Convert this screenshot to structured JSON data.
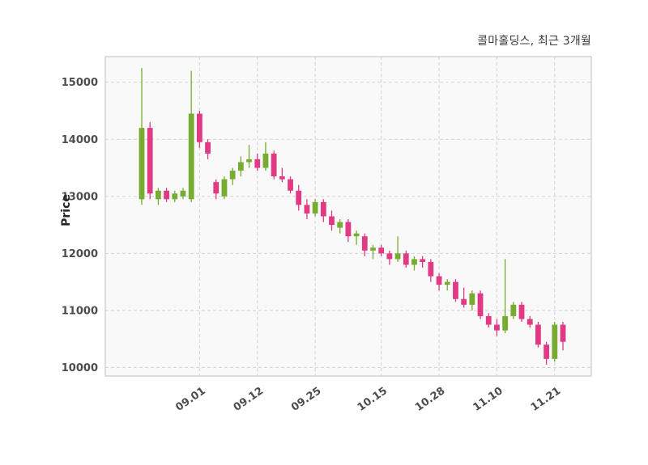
{
  "header": {
    "title": "콜마홀딩스, 최근 3개월"
  },
  "chart_data": {
    "type": "candlestick",
    "title": "콜마홀딩스, 최근 3개월",
    "ylabel": "Price",
    "ylim": [
      9850,
      15450
    ],
    "y_ticks": [
      10000,
      11000,
      12000,
      13000,
      14000,
      15000
    ],
    "x_tick_labels": [
      "09.01",
      "09.12",
      "09.25",
      "10.15",
      "10.28",
      "11.10",
      "11.21"
    ],
    "x_tick_indices": [
      7,
      14,
      21,
      29,
      36,
      43,
      50
    ],
    "grid": true,
    "legend": "none",
    "colors": {
      "up": "#77ab31",
      "down": "#e03a84",
      "grid": "#d4d4d4",
      "border": "#c9c9c9",
      "plot_bg": "#f9f9f9",
      "tick_text": "#4d4d4d"
    },
    "candles": [
      [
        12950,
        15250,
        12850,
        14200
      ],
      [
        14200,
        14300,
        12950,
        13050
      ],
      [
        12950,
        13150,
        12850,
        13100
      ],
      [
        13100,
        13150,
        12900,
        12950
      ],
      [
        12950,
        13100,
        12900,
        13050
      ],
      [
        13000,
        13150,
        12950,
        13100
      ],
      [
        12950,
        15200,
        12900,
        14450
      ],
      [
        14450,
        14500,
        13850,
        13950
      ],
      [
        13950,
        14000,
        13650,
        13750
      ],
      [
        13250,
        13300,
        12950,
        13050
      ],
      [
        13000,
        13350,
        12950,
        13300
      ],
      [
        13300,
        13500,
        13200,
        13450
      ],
      [
        13450,
        13700,
        13350,
        13600
      ],
      [
        13600,
        13900,
        13500,
        13650
      ],
      [
        13650,
        13750,
        13450,
        13500
      ],
      [
        13500,
        13950,
        13450,
        13750
      ],
      [
        13750,
        13800,
        13300,
        13350
      ],
      [
        13350,
        13500,
        13250,
        13300
      ],
      [
        13300,
        13350,
        13050,
        13100
      ],
      [
        13100,
        13200,
        12750,
        12850
      ],
      [
        12850,
        12950,
        12600,
        12700
      ],
      [
        12700,
        12950,
        12650,
        12900
      ],
      [
        12900,
        12950,
        12550,
        12650
      ],
      [
        12650,
        12750,
        12400,
        12500
      ],
      [
        12450,
        12600,
        12350,
        12550
      ],
      [
        12550,
        12600,
        12200,
        12300
      ],
      [
        12300,
        12400,
        12150,
        12350
      ],
      [
        12300,
        12350,
        11950,
        12050
      ],
      [
        12050,
        12150,
        11900,
        12100
      ],
      [
        12100,
        12150,
        11950,
        12000
      ],
      [
        12000,
        12050,
        11800,
        11900
      ],
      [
        11900,
        12300,
        11850,
        12000
      ],
      [
        12000,
        12050,
        11750,
        11800
      ],
      [
        11800,
        11950,
        11700,
        11900
      ],
      [
        11900,
        11950,
        11750,
        11850
      ],
      [
        11850,
        11900,
        11500,
        11600
      ],
      [
        11600,
        11650,
        11350,
        11450
      ],
      [
        11450,
        11550,
        11350,
        11500
      ],
      [
        11500,
        11550,
        11150,
        11200
      ],
      [
        11200,
        11400,
        11050,
        11100
      ],
      [
        11100,
        11350,
        11000,
        11300
      ],
      [
        11300,
        11350,
        10850,
        10900
      ],
      [
        10900,
        10950,
        10700,
        10750
      ],
      [
        10750,
        10850,
        10550,
        10650
      ],
      [
        10650,
        11900,
        10600,
        10900
      ],
      [
        10900,
        11150,
        10850,
        11100
      ],
      [
        11100,
        11150,
        10800,
        10850
      ],
      [
        10850,
        10900,
        10700,
        10750
      ],
      [
        10750,
        10800,
        10350,
        10400
      ],
      [
        10400,
        10450,
        10050,
        10150
      ],
      [
        10150,
        10800,
        10100,
        10750
      ],
      [
        10750,
        10800,
        10300,
        10450
      ]
    ]
  }
}
